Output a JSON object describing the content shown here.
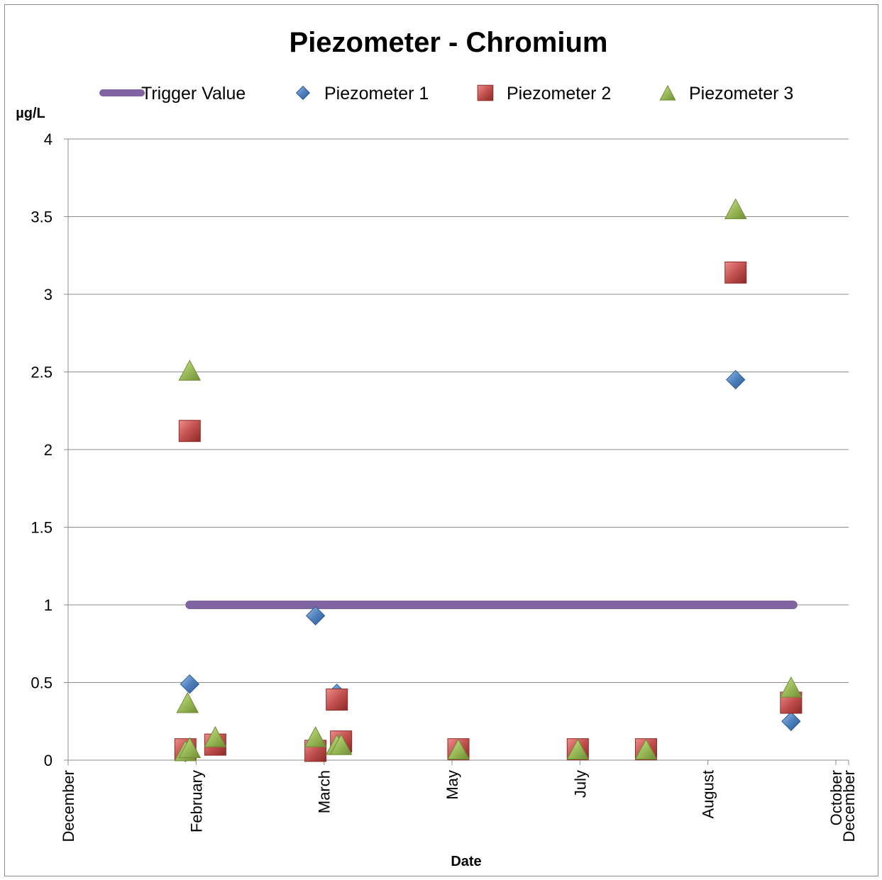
{
  "chart_data": {
    "type": "scatter",
    "title": "Piezometer - Chromium",
    "xlabel": "Date",
    "ylabel": "µg/L",
    "ylim": [
      0,
      4
    ],
    "yticks": [
      "0",
      "0.5",
      "1",
      "1.5",
      "2",
      "2.5",
      "3",
      "3.5",
      "4"
    ],
    "xaxis": {
      "type": "date",
      "range": [
        "2011-12-01",
        "2012-12-01"
      ],
      "tick_labels": [
        "December",
        "February",
        "March",
        "May",
        "July",
        "August",
        "October",
        "December"
      ]
    },
    "grid": "horizontal",
    "legend_position": "top",
    "series": [
      {
        "name": "Trigger Value",
        "mark": "line",
        "color": "#8064a2",
        "points": [
          [
            "2012-01-27",
            1
          ],
          [
            "2012-11-05",
            1
          ]
        ]
      },
      {
        "name": "Piezometer 1",
        "mark": "diamond",
        "color": "#4f81bd",
        "points": [
          [
            "2012-01-25",
            0.05
          ],
          [
            "2012-01-27",
            0.49
          ],
          [
            "2012-02-08",
            0.1
          ],
          [
            "2012-03-26",
            0.93
          ],
          [
            "2012-04-05",
            0.43
          ],
          [
            "2012-04-07",
            0.12
          ],
          [
            "2012-06-01",
            0.07
          ],
          [
            "2012-07-27",
            0.07
          ],
          [
            "2012-08-28",
            0.07
          ],
          [
            "2012-10-09",
            2.45
          ],
          [
            "2012-11-04",
            0.25
          ]
        ]
      },
      {
        "name": "Piezometer 2",
        "mark": "square",
        "color": "#c0504d",
        "points": [
          [
            "2012-01-25",
            0.07
          ],
          [
            "2012-01-27",
            2.12
          ],
          [
            "2012-02-08",
            0.1
          ],
          [
            "2012-03-26",
            0.06
          ],
          [
            "2012-04-05",
            0.39
          ],
          [
            "2012-04-07",
            0.12
          ],
          [
            "2012-06-01",
            0.07
          ],
          [
            "2012-07-27",
            0.07
          ],
          [
            "2012-08-28",
            0.07
          ],
          [
            "2012-10-09",
            3.14
          ],
          [
            "2012-11-04",
            0.37
          ]
        ]
      },
      {
        "name": "Piezometer 3",
        "mark": "triangle",
        "color": "#9bbb59",
        "points": [
          [
            "2012-01-25",
            0.06
          ],
          [
            "2012-01-26",
            0.37
          ],
          [
            "2012-01-27",
            2.51
          ],
          [
            "2012-01-27",
            0.08
          ],
          [
            "2012-02-08",
            0.15
          ],
          [
            "2012-03-26",
            0.15
          ],
          [
            "2012-04-05",
            0.1
          ],
          [
            "2012-04-07",
            0.1
          ],
          [
            "2012-06-01",
            0.07
          ],
          [
            "2012-07-27",
            0.07
          ],
          [
            "2012-08-28",
            0.07
          ],
          [
            "2012-10-09",
            3.55
          ],
          [
            "2012-11-04",
            0.47
          ]
        ]
      }
    ]
  }
}
